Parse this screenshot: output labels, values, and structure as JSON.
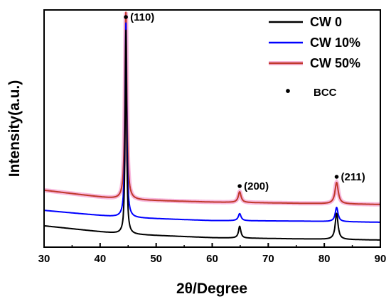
{
  "chart_data": {
    "type": "line",
    "xlabel": "2θ/Degree",
    "ylabel": "Intensity(a.u.)",
    "xlim": [
      30,
      90
    ],
    "xticks": [
      "30",
      "40",
      "50",
      "60",
      "70",
      "80",
      "90"
    ],
    "y_ticks_labeled": false,
    "grid": false,
    "legend_position": "top-right",
    "series": [
      {
        "name": "CW 0",
        "color": "#000000",
        "baseline": [
          [
            30,
            0.09
          ],
          [
            44,
            0.055
          ],
          [
            60,
            0.04
          ],
          [
            75,
            0.035
          ],
          [
            90,
            0.03
          ]
        ],
        "peaks": [
          {
            "x": 44.6,
            "height": 0.86,
            "width": 0.15
          },
          {
            "x": 64.9,
            "height": 0.05,
            "width": 0.25
          },
          {
            "x": 82.2,
            "height": 0.11,
            "width": 0.3
          }
        ]
      },
      {
        "name": "CW 10%",
        "color": "#0000ff",
        "baseline": [
          [
            30,
            0.155
          ],
          [
            44,
            0.125
          ],
          [
            60,
            0.112
          ],
          [
            75,
            0.11
          ],
          [
            90,
            0.105
          ]
        ],
        "peaks": [
          {
            "x": 44.6,
            "height": 0.82,
            "width": 0.17
          },
          {
            "x": 64.9,
            "height": 0.03,
            "width": 0.3
          },
          {
            "x": 82.2,
            "height": 0.06,
            "width": 0.3
          }
        ]
      },
      {
        "name": "CW 50%",
        "color": "#c0392b",
        "band_color": "#f5a0d2",
        "baseline": [
          [
            30,
            0.24
          ],
          [
            44,
            0.2
          ],
          [
            60,
            0.19
          ],
          [
            75,
            0.185
          ],
          [
            90,
            0.18
          ]
        ],
        "peaks": [
          {
            "x": 44.6,
            "height": 0.8,
            "width": 0.2
          },
          {
            "x": 64.9,
            "height": 0.045,
            "width": 0.3
          },
          {
            "x": 82.2,
            "height": 0.09,
            "width": 0.35
          }
        ]
      }
    ],
    "annotations": [
      {
        "label": "(110)",
        "x": 44.6
      },
      {
        "label": "(200)",
        "x": 64.9
      },
      {
        "label": "(211)",
        "x": 82.2
      }
    ],
    "marker_legend": {
      "symbol": "•",
      "label": "BCC"
    }
  }
}
